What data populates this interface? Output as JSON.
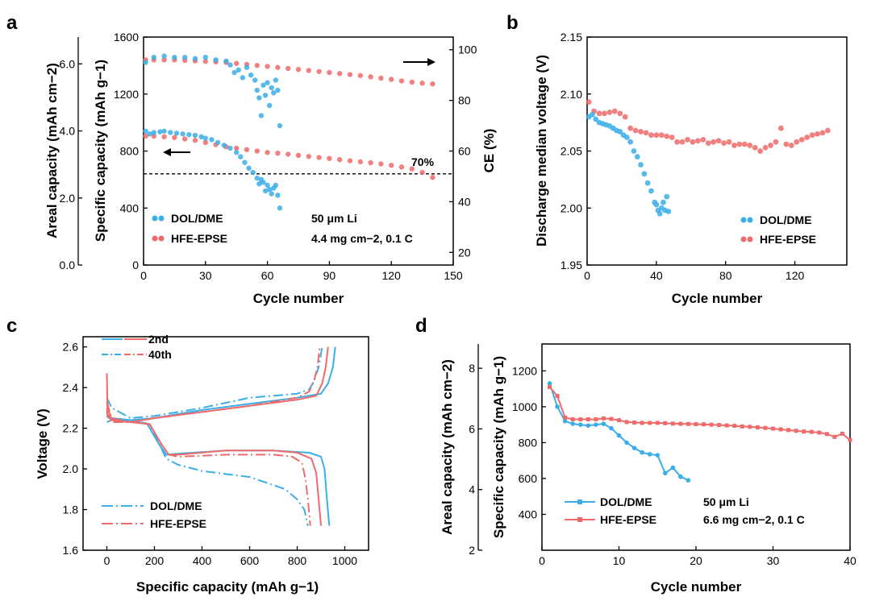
{
  "colors": {
    "blue": "#3aaee8",
    "red": "#ef6b6b",
    "axis": "#000000"
  },
  "chart_data": [
    {
      "panel": "a",
      "type": "scatter",
      "xlabel": "Cycle number",
      "ylabel_left_outer": "Areal capacity (mAh cm−2)",
      "ylabel_left": "Specific capacity (mAh g−1)",
      "ylabel_right": "CE (%)",
      "xlim": [
        0,
        150
      ],
      "xticks": [
        "0",
        "30",
        "60",
        "90",
        "120",
        "150"
      ],
      "ylim_left": [
        0,
        1600
      ],
      "yticks_left": [
        "0",
        "400",
        "800",
        "1200",
        "1600"
      ],
      "ylim_outer": [
        0,
        6.8
      ],
      "yticks_outer": [
        "0.0",
        "2.0",
        "4.0",
        "6.0"
      ],
      "ylim_right": [
        15,
        105
      ],
      "yticks_right": [
        "20",
        "40",
        "60",
        "80",
        "100"
      ],
      "ref_line_capacity": 640,
      "ref_label": "70%",
      "annotation_line1": "50 μm Li",
      "annotation_line2": "4.4 mg cm−2, 0.1 C",
      "legend": [
        "DOL/DME",
        "HFE-EPSE"
      ],
      "series": [
        {
          "name": "DOL/DME capacity",
          "color": "blue",
          "x": [
            1,
            3,
            5,
            8,
            10,
            13,
            16,
            19,
            22,
            25,
            28,
            30,
            33,
            36,
            39,
            42,
            45,
            47,
            49,
            51,
            53,
            55,
            56,
            57,
            58,
            59,
            60,
            61,
            62,
            63,
            64,
            65,
            66
          ],
          "y": [
            940,
            920,
            930,
            935,
            940,
            930,
            925,
            920,
            915,
            910,
            900,
            890,
            880,
            860,
            840,
            820,
            790,
            760,
            720,
            680,
            650,
            610,
            570,
            600,
            580,
            520,
            560,
            530,
            500,
            540,
            560,
            490,
            400
          ]
        },
        {
          "name": "HFE-EPSE capacity",
          "color": "red",
          "x": [
            1,
            5,
            10,
            15,
            20,
            25,
            30,
            35,
            40,
            45,
            50,
            55,
            60,
            65,
            70,
            75,
            80,
            85,
            90,
            95,
            100,
            105,
            110,
            115,
            120,
            125,
            130,
            135,
            140
          ],
          "y": [
            905,
            905,
            900,
            895,
            885,
            875,
            860,
            845,
            830,
            820,
            810,
            800,
            790,
            785,
            778,
            770,
            762,
            755,
            748,
            740,
            732,
            725,
            718,
            710,
            700,
            688,
            675,
            650,
            615
          ]
        },
        {
          "name": "DOL/DME CE",
          "color": "blue",
          "x": [
            1,
            5,
            10,
            15,
            20,
            25,
            30,
            35,
            40,
            42,
            44,
            46,
            48,
            50,
            52,
            54,
            55,
            56,
            57,
            58,
            59,
            60,
            61,
            62,
            63,
            64,
            65,
            66
          ],
          "y": [
            95,
            97,
            97.5,
            97,
            97,
            96.5,
            97,
            96,
            95.5,
            94,
            91,
            92,
            89,
            93,
            90,
            88,
            84,
            81,
            74,
            86,
            82,
            87,
            78,
            85,
            83,
            88,
            84,
            70
          ]
        },
        {
          "name": "HFE-EPSE CE",
          "color": "red",
          "x": [
            1,
            5,
            10,
            15,
            20,
            25,
            30,
            35,
            40,
            45,
            50,
            55,
            60,
            65,
            70,
            75,
            80,
            85,
            90,
            95,
            100,
            105,
            110,
            115,
            120,
            125,
            130,
            135,
            140
          ],
          "y": [
            96,
            96,
            96,
            96,
            95.8,
            95.6,
            95.4,
            95.2,
            95,
            94.6,
            94.2,
            93.8,
            93.4,
            93,
            92.6,
            92.2,
            91.8,
            91.4,
            91,
            90.6,
            90.2,
            89.8,
            89.3,
            88.8,
            88.3,
            87.7,
            87.2,
            86.8,
            86.5
          ]
        }
      ]
    },
    {
      "panel": "b",
      "type": "scatter",
      "xlabel": "Cycle number",
      "ylabel": "Discharge median voltage (V)",
      "xlim": [
        0,
        150
      ],
      "xticks": [
        "0",
        "40",
        "80",
        "120"
      ],
      "ylim": [
        1.95,
        2.15
      ],
      "yticks": [
        "1.95",
        "2.00",
        "2.05",
        "2.10",
        "2.15"
      ],
      "legend": [
        "DOL/DME",
        "HFE-EPSE"
      ],
      "series": [
        {
          "name": "DOL/DME",
          "color": "blue",
          "x": [
            1,
            3,
            5,
            7,
            9,
            11,
            13,
            15,
            17,
            19,
            21,
            23,
            25,
            27,
            29,
            31,
            33,
            35,
            37,
            39,
            40,
            41,
            42,
            43,
            44,
            45,
            46,
            47
          ],
          "y": [
            2.08,
            2.082,
            2.078,
            2.075,
            2.074,
            2.073,
            2.072,
            2.07,
            2.068,
            2.067,
            2.064,
            2.062,
            2.058,
            2.05,
            2.045,
            2.038,
            2.03,
            2.022,
            2.015,
            2.005,
            2.003,
            1.998,
            1.995,
            2.0,
            2.005,
            1.998,
            2.01,
            1.997
          ]
        },
        {
          "name": "HFE-EPSE",
          "color": "red",
          "x": [
            1,
            4,
            7,
            10,
            13,
            16,
            19,
            22,
            25,
            28,
            31,
            34,
            37,
            40,
            43,
            46,
            49,
            52,
            55,
            58,
            61,
            64,
            67,
            70,
            73,
            76,
            79,
            82,
            85,
            88,
            91,
            94,
            97,
            100,
            103,
            106,
            109,
            112,
            115,
            118,
            121,
            124,
            127,
            130,
            133,
            136,
            139
          ],
          "y": [
            2.093,
            2.085,
            2.083,
            2.083,
            2.084,
            2.085,
            2.083,
            2.08,
            2.07,
            2.068,
            2.067,
            2.066,
            2.064,
            2.064,
            2.064,
            2.063,
            2.062,
            2.058,
            2.058,
            2.06,
            2.058,
            2.059,
            2.06,
            2.057,
            2.058,
            2.059,
            2.057,
            2.058,
            2.055,
            2.056,
            2.056,
            2.055,
            2.053,
            2.05,
            2.053,
            2.055,
            2.058,
            2.07,
            2.056,
            2.055,
            2.058,
            2.06,
            2.062,
            2.064,
            2.065,
            2.066,
            2.068
          ]
        }
      ]
    },
    {
      "panel": "c",
      "type": "line",
      "xlabel": "Specific capacity (mAh g−1)",
      "ylabel": "Voltage (V)",
      "xlim": [
        -100,
        1100
      ],
      "xticks": [
        "0",
        "200",
        "400",
        "600",
        "800",
        "1000"
      ],
      "ylim": [
        1.6,
        2.65
      ],
      "yticks": [
        "1.6",
        "1.8",
        "2.0",
        "2.2",
        "2.4",
        "2.6"
      ],
      "cycle_labels": [
        "2nd",
        "40th"
      ],
      "legend": [
        "DOL/DME",
        "HFE-EPSE"
      ],
      "series": [
        {
          "name": "DOL/DME 2nd discharge",
          "color": "blue",
          "dash": "solid",
          "x": [
            0,
            3,
            20,
            100,
            170,
            220,
            250,
            300,
            500,
            700,
            850,
            900,
            915,
            925,
            935
          ],
          "y": [
            2.28,
            2.26,
            2.25,
            2.24,
            2.22,
            2.12,
            2.07,
            2.075,
            2.09,
            2.09,
            2.08,
            2.06,
            2.0,
            1.85,
            1.72
          ]
        },
        {
          "name": "DOL/DME 2nd charge",
          "color": "blue",
          "dash": "solid",
          "x": [
            0,
            20,
            100,
            200,
            400,
            600,
            800,
            900,
            930,
            950,
            960
          ],
          "y": [
            2.23,
            2.24,
            2.24,
            2.25,
            2.29,
            2.32,
            2.35,
            2.37,
            2.42,
            2.5,
            2.6
          ]
        },
        {
          "name": "DOL/DME 40th discharge",
          "color": "blue",
          "dash": "dashdot",
          "x": [
            0,
            10,
            100,
            180,
            250,
            300,
            400,
            600,
            750,
            800,
            830,
            845
          ],
          "y": [
            2.26,
            2.25,
            2.24,
            2.22,
            2.05,
            2.02,
            1.99,
            1.96,
            1.9,
            1.85,
            1.8,
            1.72
          ]
        },
        {
          "name": "DOL/DME 40th charge",
          "color": "blue",
          "dash": "dashdot",
          "x": [
            0,
            20,
            100,
            200,
            400,
            600,
            800,
            850,
            870,
            890,
            905
          ],
          "y": [
            2.35,
            2.3,
            2.25,
            2.26,
            2.3,
            2.35,
            2.37,
            2.39,
            2.43,
            2.5,
            2.6
          ]
        },
        {
          "name": "HFE-EPSE 2nd discharge",
          "color": "red",
          "dash": "solid",
          "x": [
            0,
            3,
            20,
            100,
            180,
            230,
            260,
            300,
            500,
            700,
            800,
            860,
            880,
            890,
            900
          ],
          "y": [
            2.47,
            2.27,
            2.24,
            2.23,
            2.22,
            2.12,
            2.07,
            2.07,
            2.09,
            2.09,
            2.08,
            2.05,
            1.98,
            1.85,
            1.72
          ]
        },
        {
          "name": "HFE-EPSE 2nd charge",
          "color": "red",
          "dash": "solid",
          "x": [
            0,
            20,
            100,
            200,
            400,
            600,
            800,
            880,
            905,
            920,
            930
          ],
          "y": [
            2.32,
            2.24,
            2.23,
            2.25,
            2.28,
            2.31,
            2.34,
            2.36,
            2.42,
            2.5,
            2.6
          ]
        },
        {
          "name": "HFE-EPSE 40th discharge",
          "color": "red",
          "dash": "dashdot",
          "x": [
            0,
            3,
            20,
            100,
            180,
            230,
            260,
            300,
            500,
            700,
            780,
            820,
            835,
            845,
            855
          ],
          "y": [
            2.3,
            2.25,
            2.23,
            2.23,
            2.22,
            2.12,
            2.07,
            2.06,
            2.07,
            2.07,
            2.06,
            2.03,
            1.95,
            1.85,
            1.72
          ]
        },
        {
          "name": "HFE-EPSE 40th charge",
          "color": "red",
          "dash": "dashdot",
          "x": [
            0,
            20,
            100,
            200,
            400,
            600,
            800,
            850,
            870,
            885,
            895
          ],
          "y": [
            2.33,
            2.25,
            2.23,
            2.25,
            2.28,
            2.31,
            2.35,
            2.38,
            2.43,
            2.5,
            2.6
          ]
        }
      ]
    },
    {
      "panel": "d",
      "type": "line",
      "xlabel": "Cycle number",
      "ylabel_left_outer": "Areal capacity (mAh cm−2)",
      "ylabel_left": "Specific capacity (mAh g−1)",
      "xlim": [
        0,
        40
      ],
      "xticks": [
        "0",
        "10",
        "20",
        "30",
        "40"
      ],
      "ylim_left": [
        200,
        1350
      ],
      "yticks_left": [
        "400",
        "600",
        "800",
        "1000",
        "1200"
      ],
      "ylim_outer": [
        2,
        8.8
      ],
      "yticks_outer": [
        "2",
        "4",
        "6",
        "8"
      ],
      "annotation_line1": "50 μm Li",
      "annotation_line2": "6.6 mg cm−2, 0.1 C",
      "legend": [
        "DOL/DME",
        "HFE-EPSE"
      ],
      "series": [
        {
          "name": "DOL/DME",
          "color": "blue",
          "x": [
            1,
            2,
            3,
            4,
            5,
            6,
            7,
            8,
            9,
            10,
            11,
            12,
            13,
            14,
            15,
            16,
            17,
            18,
            19
          ],
          "y": [
            1130,
            1000,
            920,
            905,
            900,
            895,
            900,
            905,
            880,
            840,
            800,
            770,
            745,
            735,
            730,
            630,
            660,
            610,
            590
          ]
        },
        {
          "name": "HFE-EPSE",
          "color": "red",
          "x": [
            1,
            2,
            3,
            4,
            5,
            6,
            7,
            8,
            9,
            10,
            11,
            12,
            13,
            14,
            15,
            16,
            17,
            18,
            19,
            20,
            21,
            22,
            23,
            24,
            25,
            26,
            27,
            28,
            29,
            30,
            31,
            32,
            33,
            34,
            35,
            36,
            37,
            38,
            39,
            40
          ],
          "y": [
            1110,
            1060,
            940,
            930,
            930,
            930,
            930,
            935,
            932,
            925,
            915,
            912,
            910,
            910,
            910,
            908,
            906,
            905,
            904,
            903,
            902,
            900,
            898,
            896,
            894,
            890,
            888,
            885,
            882,
            878,
            874,
            870,
            866,
            862,
            860,
            856,
            848,
            832,
            850,
            815
          ]
        }
      ]
    }
  ]
}
